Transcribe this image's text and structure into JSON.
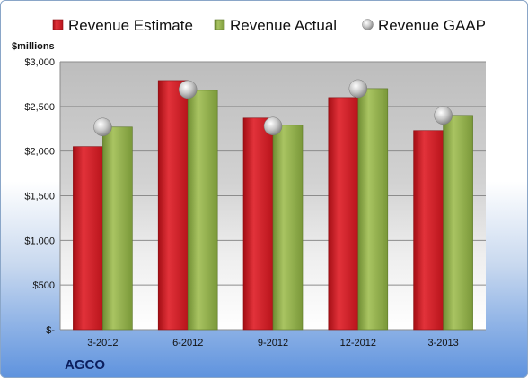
{
  "company": "AGCO",
  "colors": {
    "estimate": "#d01a22",
    "actual": "#8fae45",
    "gaap": "#bcbcbc"
  },
  "chart_data": {
    "type": "bar",
    "categories": [
      "3-2012",
      "6-2012",
      "9-2012",
      "12-2012",
      "3-2013"
    ],
    "series": [
      {
        "name": "Revenue Estimate",
        "values": [
          2050,
          2790,
          2370,
          2600,
          2230
        ]
      },
      {
        "name": "Revenue Actual",
        "values": [
          2270,
          2680,
          2290,
          2700,
          2400
        ]
      },
      {
        "name": "Revenue GAAP",
        "type": "marker",
        "values": [
          2270,
          2690,
          2280,
          2700,
          2400
        ]
      }
    ],
    "ylabel": "$millions",
    "ylim": [
      0,
      3000
    ],
    "yticks": [
      0,
      500,
      1000,
      1500,
      2000,
      2500,
      3000
    ],
    "ytick_labels": [
      "$-",
      "$500",
      "$1,000",
      "$1,500",
      "$2,000",
      "$2,500",
      "$3,000"
    ],
    "grid": true,
    "legend": "top"
  }
}
